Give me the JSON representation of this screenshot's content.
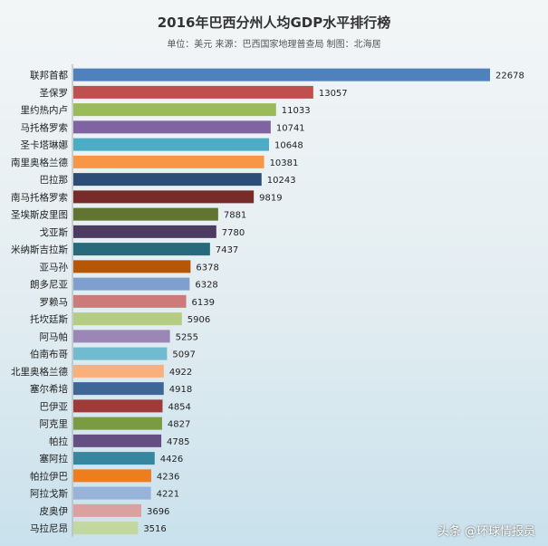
{
  "chart_data": {
    "type": "bar",
    "orientation": "horizontal",
    "title": "2016年巴西分州人均GDP水平排行榜",
    "subtitle": "单位：美元 来源：巴西国家地理普查局 制图：北海居",
    "categories": [
      "联邦首都",
      "圣保罗",
      "里约热内卢",
      "马托格罗索",
      "圣卡塔琳娜",
      "南里奥格兰德",
      "巴拉那",
      "南马托格罗索",
      "圣埃斯皮里图",
      "戈亚斯",
      "米纳斯吉拉斯",
      "亚马孙",
      "朗多尼亚",
      "罗赖马",
      "托坎廷斯",
      "阿马帕",
      "伯南布哥",
      "北里奥格兰德",
      "塞尔希培",
      "巴伊亚",
      "阿克里",
      "帕拉",
      "塞阿拉",
      "帕拉伊巴",
      "阿拉戈斯",
      "皮奥伊",
      "马拉尼昂"
    ],
    "values": [
      22678,
      13057,
      11033,
      10741,
      10648,
      10381,
      10243,
      9819,
      7881,
      7780,
      7437,
      6378,
      6328,
      6139,
      5906,
      5255,
      5097,
      4922,
      4918,
      4854,
      4827,
      4785,
      4426,
      4236,
      4221,
      3696,
      3516
    ],
    "colors": [
      "#4f81bd",
      "#c0504d",
      "#9bbb59",
      "#8064a2",
      "#4bacc6",
      "#f79646",
      "#2c4d75",
      "#772c2a",
      "#5f7530",
      "#4d3b62",
      "#276a7c",
      "#b65708",
      "#7f9fcf",
      "#cd7b79",
      "#b4cd83",
      "#9b87b5",
      "#71bbd1",
      "#fab07a",
      "#3e6798",
      "#9e3b38",
      "#7b9a41",
      "#654e81",
      "#34879e",
      "#ed7d1d",
      "#97b3d9",
      "#dba19f",
      "#c3d7a0"
    ],
    "xlim": [
      0,
      22678
    ],
    "grid": false,
    "legend": "none"
  },
  "watermark": "头条 @环球情报员"
}
